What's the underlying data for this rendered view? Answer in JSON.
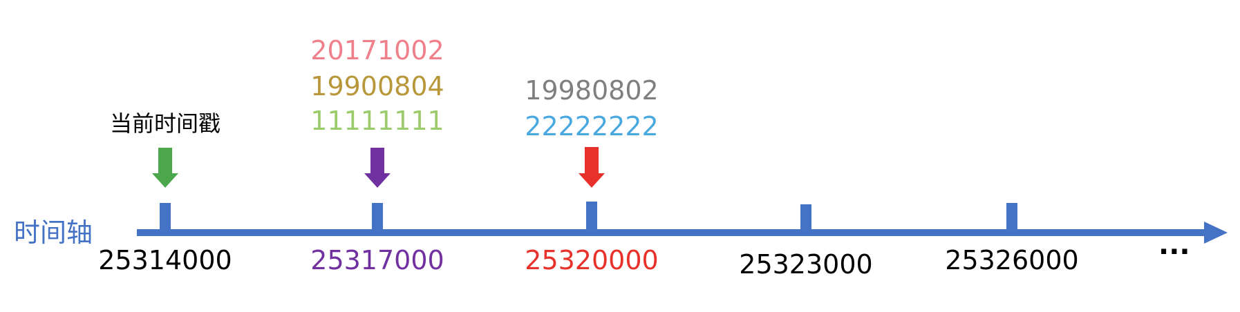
{
  "axis": {
    "label": "时间轴",
    "color": "#4472C4",
    "ellipsis": "···"
  },
  "ticks": [
    {
      "value": "25314000",
      "color": "#000000"
    },
    {
      "value": "25317000",
      "color": "#7030A0"
    },
    {
      "value": "25320000",
      "color": "#E8312A"
    },
    {
      "value": "25323000",
      "color": "#000000"
    },
    {
      "value": "25326000",
      "color": "#000000"
    }
  ],
  "markers": [
    {
      "tick_index": 0,
      "arrow_color": "#4CA64C",
      "labels": [
        {
          "text": "当前时间戳",
          "color": "#000000"
        }
      ]
    },
    {
      "tick_index": 1,
      "arrow_color": "#7030A0",
      "labels": [
        {
          "text": "20171002",
          "color": "#EF7F8A"
        },
        {
          "text": "19900804",
          "color": "#B8963A"
        },
        {
          "text": "11111111",
          "color": "#9BCB6A"
        }
      ]
    },
    {
      "tick_index": 2,
      "arrow_color": "#E8312A",
      "labels": [
        {
          "text": "19980802",
          "color": "#7F7F7F"
        },
        {
          "text": "22222222",
          "color": "#4AA8E0"
        }
      ]
    }
  ]
}
